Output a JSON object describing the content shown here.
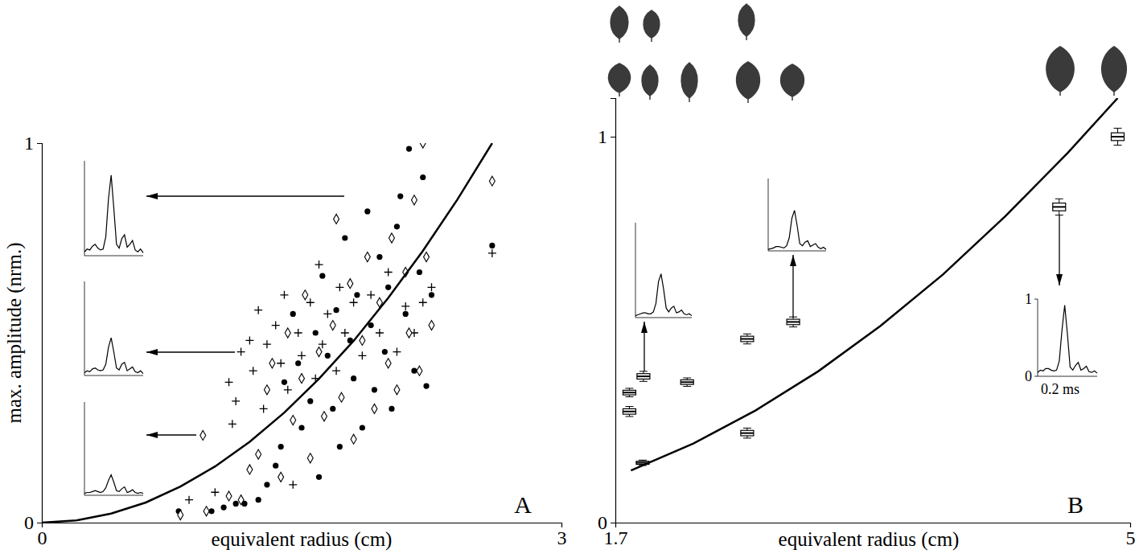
{
  "chart_data": [
    {
      "type": "scatter",
      "panel_label": "A",
      "xlabel": "equivalent radius (cm)",
      "ylabel": "max. amplitude (nrm.)",
      "xlim": [
        0,
        3
      ],
      "ylim": [
        0,
        1
      ],
      "xticks": [
        0,
        3
      ],
      "yticks": [
        0,
        1
      ],
      "series": [
        {
          "type": "scatter",
          "marker": "circle",
          "color": "#000000",
          "x": [
            0.79,
            0.98,
            1.05,
            1.12,
            1.17,
            1.25,
            1.3,
            1.35,
            1.38,
            1.4,
            1.45,
            1.48,
            1.5,
            1.55,
            1.58,
            1.6,
            1.62,
            1.65,
            1.68,
            1.7,
            1.72,
            1.75,
            1.78,
            1.8,
            1.82,
            1.85,
            1.88,
            1.9,
            1.92,
            1.95,
            1.98,
            2.0,
            2.02,
            2.05,
            2.07,
            2.1,
            2.12,
            2.15,
            2.18,
            2.2,
            2.22,
            2.25,
            2.6
          ],
          "values": [
            0.03,
            0.03,
            0.04,
            0.05,
            0.05,
            0.06,
            0.1,
            0.15,
            0.2,
            0.37,
            0.55,
            0.42,
            0.25,
            0.32,
            0.5,
            0.12,
            0.65,
            0.44,
            0.3,
            0.56,
            0.2,
            0.75,
            0.48,
            0.38,
            0.6,
            0.25,
            0.82,
            0.52,
            0.35,
            0.7,
            0.45,
            0.62,
            0.3,
            0.78,
            0.86,
            0.55,
            0.985,
            0.4,
            0.66,
            0.91,
            0.36,
            0.6,
            0.73
          ]
        },
        {
          "type": "scatter",
          "marker": "plus",
          "color": "#000000",
          "x": [
            0.85,
            1.0,
            1.08,
            1.1,
            1.12,
            1.15,
            1.2,
            1.22,
            1.25,
            1.28,
            1.3,
            1.35,
            1.38,
            1.4,
            1.42,
            1.45,
            1.48,
            1.5,
            1.55,
            1.58,
            1.6,
            1.62,
            1.65,
            1.7,
            1.72,
            1.75,
            1.8,
            1.85,
            1.9,
            1.95,
            2.0,
            2.05,
            2.1,
            2.15,
            2.2,
            2.25,
            2.6
          ],
          "values": [
            0.06,
            0.08,
            0.37,
            0.26,
            0.32,
            0.45,
            0.48,
            0.4,
            0.56,
            0.3,
            0.47,
            0.52,
            0.42,
            0.6,
            0.35,
            0.1,
            0.5,
            0.44,
            0.58,
            0.38,
            0.68,
            0.47,
            0.55,
            0.4,
            0.62,
            0.5,
            0.58,
            0.44,
            0.6,
            0.5,
            0.66,
            0.45,
            0.57,
            0.5,
            0.58,
            0.62,
            0.71
          ]
        },
        {
          "type": "scatter",
          "marker": "diamond",
          "color": "#000000",
          "x": [
            0.8,
            0.93,
            0.95,
            1.08,
            1.15,
            1.2,
            1.25,
            1.3,
            1.33,
            1.38,
            1.42,
            1.45,
            1.5,
            1.52,
            1.55,
            1.6,
            1.63,
            1.68,
            1.7,
            1.73,
            1.78,
            1.8,
            1.85,
            1.88,
            1.92,
            1.95,
            2.0,
            2.02,
            2.05,
            2.1,
            2.12,
            2.15,
            2.18,
            2.2,
            2.22,
            2.25,
            2.6
          ],
          "values": [
            0.02,
            0.23,
            0.03,
            0.07,
            0.06,
            0.14,
            0.18,
            0.35,
            0.42,
            0.12,
            0.5,
            0.27,
            0.38,
            0.6,
            0.17,
            0.45,
            0.28,
            0.52,
            0.8,
            0.33,
            0.63,
            0.22,
            0.48,
            0.7,
            0.3,
            0.58,
            0.42,
            0.75,
            0.35,
            0.66,
            0.5,
            0.85,
            0.4,
            1.0,
            0.7,
            0.52,
            0.9
          ]
        },
        {
          "type": "line",
          "line_style": "solid",
          "color": "#000000",
          "x": [
            0,
            0.2,
            0.4,
            0.6,
            0.8,
            1.0,
            1.2,
            1.4,
            1.6,
            1.8,
            2.0,
            2.2,
            2.4,
            2.6
          ],
          "values": [
            0,
            0.006,
            0.024,
            0.053,
            0.095,
            0.148,
            0.213,
            0.29,
            0.379,
            0.479,
            0.592,
            0.716,
            0.852,
            1.0
          ]
        }
      ],
      "insets": [
        {
          "ylim": [
            0,
            1
          ],
          "tick_labels": false,
          "values": [
            0.04,
            0.07,
            0.06,
            0.1,
            0.12,
            0.08,
            0.06,
            0.07,
            0.2,
            0.6,
            0.85,
            0.5,
            0.12,
            0.08,
            0.18,
            0.22,
            0.09,
            0.12,
            0.16,
            0.06,
            0.04,
            0.07,
            0.03
          ]
        },
        {
          "ylim": [
            0,
            1
          ],
          "tick_labels": false,
          "values": [
            0.03,
            0.05,
            0.04,
            0.07,
            0.08,
            0.06,
            0.05,
            0.06,
            0.12,
            0.3,
            0.4,
            0.25,
            0.08,
            0.06,
            0.12,
            0.14,
            0.05,
            0.07,
            0.09,
            0.04,
            0.03,
            0.05,
            0.02
          ]
        },
        {
          "ylim": [
            0,
            1
          ],
          "tick_labels": false,
          "values": [
            0.02,
            0.03,
            0.03,
            0.04,
            0.05,
            0.04,
            0.03,
            0.04,
            0.08,
            0.16,
            0.22,
            0.14,
            0.05,
            0.04,
            0.07,
            0.09,
            0.03,
            0.04,
            0.06,
            0.03,
            0.02,
            0.03,
            0.02
          ]
        }
      ]
    },
    {
      "type": "box",
      "panel_label": "B",
      "xlabel": "equivalent radius (cm)",
      "xlim": [
        1.7,
        5
      ],
      "ylim": [
        0,
        1.1
      ],
      "xticks": [
        1.7,
        5
      ],
      "yticks": [
        0,
        1
      ],
      "boxes": {
        "x": [
          1.79,
          1.79,
          1.875,
          1.88,
          2.16,
          2.545,
          2.545,
          2.84,
          4.545,
          4.92
        ],
        "median": [
          0.337,
          0.288,
          0.155,
          0.379,
          0.364,
          0.476,
          0.232,
          0.52,
          0.818,
          1.0
        ],
        "q1": [
          0.331,
          0.281,
          0.151,
          0.372,
          0.358,
          0.469,
          0.225,
          0.513,
          0.808,
          0.99
        ],
        "q3": [
          0.343,
          0.295,
          0.159,
          0.386,
          0.37,
          0.483,
          0.239,
          0.527,
          0.828,
          1.01
        ],
        "low": [
          0.326,
          0.275,
          0.148,
          0.366,
          0.353,
          0.463,
          0.219,
          0.507,
          0.797,
          0.978
        ],
        "high": [
          0.348,
          0.301,
          0.162,
          0.392,
          0.375,
          0.489,
          0.245,
          0.533,
          0.839,
          1.022
        ]
      },
      "series": [
        {
          "type": "line",
          "line_style": "solid",
          "color": "#000000",
          "x": [
            1.8,
            2.2,
            2.6,
            3.0,
            3.4,
            3.8,
            4.2,
            4.6,
            4.92
          ],
          "values": [
            0.135,
            0.205,
            0.291,
            0.392,
            0.51,
            0.643,
            0.794,
            0.958,
            1.1
          ]
        }
      ],
      "insets": [
        {
          "ylim": [
            0,
            1
          ],
          "tick_labels": false,
          "values": [
            0.02,
            0.03,
            0.04,
            0.05,
            0.05,
            0.04,
            0.04,
            0.06,
            0.15,
            0.38,
            0.46,
            0.3,
            0.1,
            0.06,
            0.1,
            0.12,
            0.05,
            0.06,
            0.08,
            0.04,
            0.03,
            0.04,
            0.02
          ]
        },
        {
          "ylim": [
            0,
            1
          ],
          "tick_labels": false,
          "values": [
            0.02,
            0.03,
            0.04,
            0.06,
            0.06,
            0.05,
            0.04,
            0.07,
            0.18,
            0.45,
            0.56,
            0.35,
            0.1,
            0.07,
            0.12,
            0.14,
            0.06,
            0.08,
            0.1,
            0.05,
            0.03,
            0.05,
            0.02
          ]
        },
        {
          "ylim": [
            0,
            1
          ],
          "yticks": [
            0,
            1
          ],
          "xlabel": "0.2 ms",
          "values": [
            0.05,
            0.08,
            0.07,
            0.1,
            0.1,
            0.08,
            0.07,
            0.08,
            0.2,
            0.6,
            0.92,
            0.55,
            0.12,
            0.08,
            0.14,
            0.18,
            0.08,
            0.1,
            0.13,
            0.06,
            0.05,
            0.07,
            0.04
          ]
        }
      ]
    }
  ]
}
